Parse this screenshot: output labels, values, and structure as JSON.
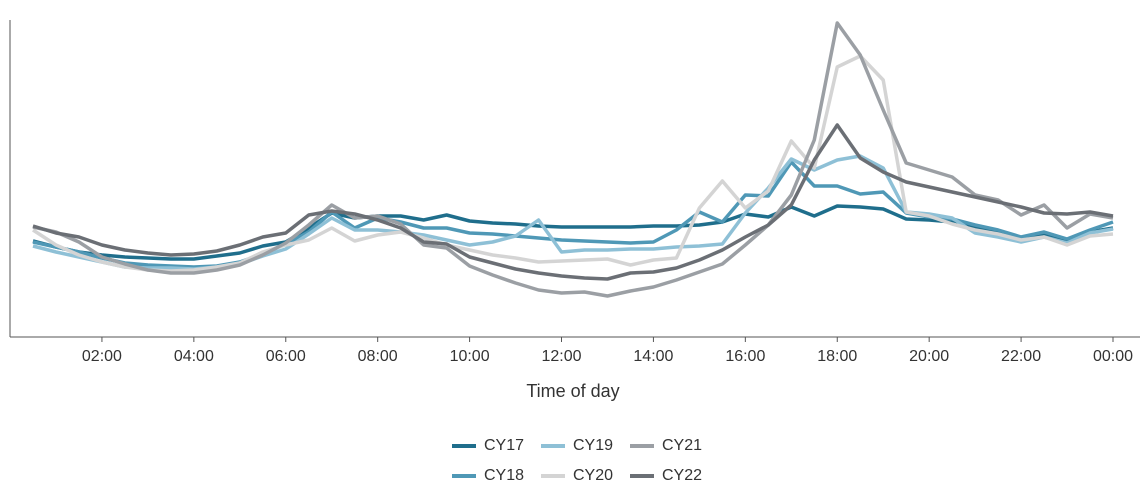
{
  "chart_data": {
    "type": "line",
    "xlabel": "Time of day",
    "categories": [
      null,
      null,
      null,
      "02:00",
      null,
      null,
      null,
      "04:00",
      null,
      null,
      null,
      "06:00",
      null,
      null,
      null,
      "08:00",
      null,
      null,
      null,
      "10:00",
      null,
      null,
      null,
      "12:00",
      null,
      null,
      null,
      "14:00",
      null,
      null,
      null,
      "16:00",
      null,
      null,
      null,
      "18:00",
      null,
      null,
      null,
      "20:00",
      null,
      null,
      null,
      "22:00",
      null,
      null,
      null,
      "00:00"
    ],
    "ylim": [
      0,
      317
    ],
    "legend": "bottom",
    "series": [
      {
        "name": "CY17",
        "color": "#1f6e8c",
        "values": [
          96,
          90,
          85,
          82,
          80,
          79,
          78,
          78,
          81,
          84,
          91,
          95,
          109,
          124,
          119,
          121,
          121,
          117,
          122,
          116,
          114,
          113,
          111,
          110,
          110,
          110,
          110,
          111,
          111,
          112,
          115,
          123,
          120,
          130,
          121,
          131,
          130,
          128,
          118,
          117,
          115,
          109,
          105,
          99,
          103,
          97,
          105,
          109
        ]
      },
      {
        "name": "CY18",
        "color": "#4f98b6",
        "values": [
          95,
          90,
          85,
          79,
          74,
          72,
          71,
          70,
          71,
          75,
          83,
          93,
          105,
          125,
          109,
          119,
          115,
          109,
          109,
          104,
          103,
          101,
          99,
          97,
          96,
          95,
          94,
          95,
          107,
          125,
          115,
          142,
          141,
          175,
          151,
          151,
          143,
          145,
          124,
          120,
          118,
          112,
          107,
          100,
          105,
          98,
          107,
          115
        ]
      },
      {
        "name": "CY19",
        "color": "#8ec0d6",
        "values": [
          91,
          85,
          80,
          75,
          70,
          69,
          69,
          68,
          70,
          73,
          81,
          88,
          103,
          119,
          107,
          107,
          105,
          102,
          97,
          92,
          95,
          101,
          117,
          85,
          87,
          87,
          88,
          88,
          90,
          91,
          93,
          124,
          149,
          178,
          167,
          177,
          181,
          169,
          125,
          123,
          119,
          104,
          100,
          95,
          100,
          94,
          104,
          108
        ]
      },
      {
        "name": "CY20",
        "color": "#d4d4d4",
        "values": [
          107,
          92,
          82,
          75,
          70,
          67,
          66,
          67,
          70,
          74,
          85,
          92,
          97,
          109,
          96,
          102,
          105,
          99,
          92,
          87,
          82,
          79,
          75,
          76,
          77,
          78,
          72,
          77,
          79,
          129,
          156,
          129,
          146,
          196,
          169,
          270,
          281,
          257,
          125,
          121,
          113,
          107,
          103,
          97,
          100,
          92,
          101,
          103
        ]
      },
      {
        "name": "CY21",
        "color": "#9b9fa4",
        "values": [
          110,
          105,
          95,
          80,
          73,
          67,
          64,
          64,
          67,
          72,
          82,
          94,
          112,
          132,
          119,
          121,
          113,
          92,
          89,
          71,
          62,
          54,
          47,
          44,
          45,
          41,
          46,
          50,
          57,
          65,
          73,
          92,
          112,
          142,
          197,
          314,
          282,
          227,
          174,
          167,
          160,
          142,
          137,
          122,
          132,
          109,
          123,
          119
        ]
      },
      {
        "name": "CY22",
        "color": "#6b6f75",
        "values": [
          111,
          104,
          100,
          92,
          87,
          84,
          82,
          83,
          86,
          92,
          100,
          104,
          122,
          126,
          123,
          117,
          109,
          95,
          93,
          80,
          74,
          68,
          64,
          61,
          59,
          58,
          64,
          65,
          69,
          77,
          87,
          100,
          112,
          132,
          177,
          212,
          179,
          165,
          155,
          150,
          145,
          140,
          135,
          130,
          124,
          123,
          125,
          121
        ]
      }
    ]
  }
}
